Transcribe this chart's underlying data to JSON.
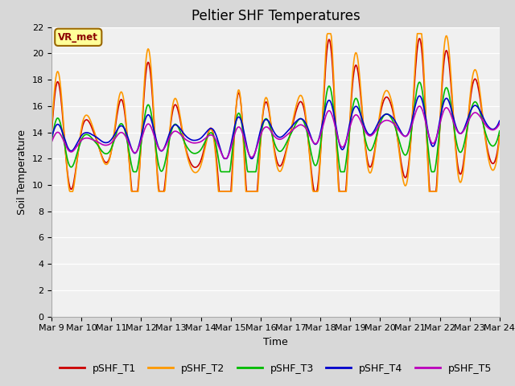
{
  "title": "Peltier SHF Temperatures",
  "ylabel": "Soil Temperature",
  "xlabel": "Time",
  "annotation": "VR_met",
  "ylim": [
    0,
    22
  ],
  "yticks": [
    0,
    2,
    4,
    6,
    8,
    10,
    12,
    14,
    16,
    18,
    20,
    22
  ],
  "xtick_labels": [
    "Mar 9",
    "Mar 10",
    "Mar 11",
    "Mar 12",
    "Mar 13",
    "Mar 14",
    "Mar 15",
    "Mar 16",
    "Mar 17",
    "Mar 18",
    "Mar 19",
    "Mar 20",
    "Mar 21",
    "Mar 22",
    "Mar 23",
    "Mar 24"
  ],
  "series_colors": {
    "pSHF_T1": "#cc0000",
    "pSHF_T2": "#ff9900",
    "pSHF_T3": "#00bb00",
    "pSHF_T4": "#0000cc",
    "pSHF_T5": "#bb00bb"
  },
  "background_color": "#d8d8d8",
  "plot_bg_color": "#f0f0f0",
  "title_fontsize": 12,
  "axis_label_fontsize": 9,
  "tick_fontsize": 8,
  "legend_fontsize": 9,
  "line_width": 1.2,
  "figsize": [
    6.4,
    4.8
  ],
  "dpi": 100
}
